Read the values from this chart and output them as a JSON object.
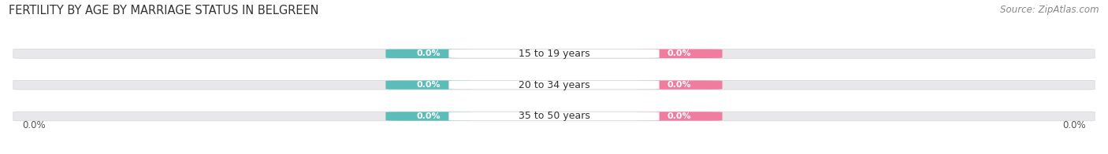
{
  "title": "FERTILITY BY AGE BY MARRIAGE STATUS IN BELGREEN",
  "source": "Source: ZipAtlas.com",
  "age_groups": [
    "15 to 19 years",
    "20 to 34 years",
    "35 to 50 years"
  ],
  "married_values": [
    "0.0%",
    "0.0%",
    "0.0%"
  ],
  "unmarried_values": [
    "0.0%",
    "0.0%",
    "0.0%"
  ],
  "married_color": "#5bbcb8",
  "unmarried_color": "#f07ca0",
  "bar_bg_color": "#e8e8ea",
  "left_axis_label": "0.0%",
  "right_axis_label": "0.0%",
  "title_fontsize": 10.5,
  "source_fontsize": 8.5,
  "value_fontsize": 8,
  "age_fontsize": 9,
  "legend_fontsize": 9,
  "axis_label_fontsize": 8.5,
  "background_color": "#ffffff",
  "figsize": [
    14.06,
    1.96
  ],
  "dpi": 100
}
